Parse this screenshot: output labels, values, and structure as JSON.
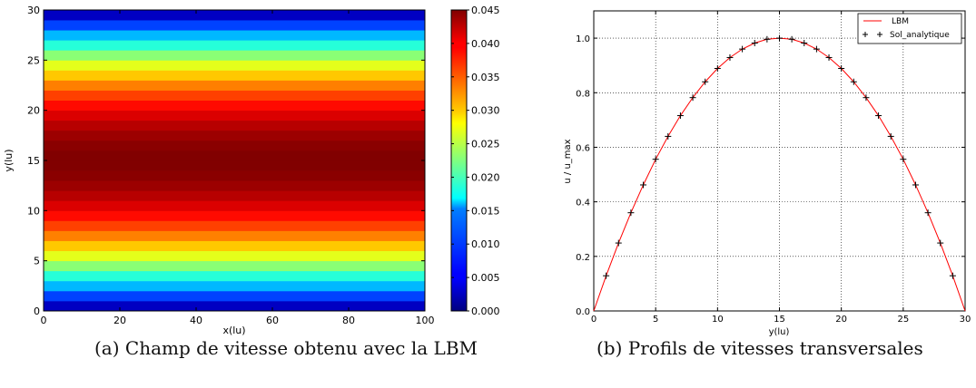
{
  "captions": {
    "a": "(a) Champ de vitesse obtenu avec la LBM",
    "b": "(b) Profils de vitesses transversales"
  },
  "chart_data": [
    {
      "type": "heatmap",
      "xlabel": "x(lu)",
      "ylabel": "y(lu)",
      "xlim": [
        0,
        100
      ],
      "ylim": [
        0,
        30
      ],
      "x_ticks": [
        0,
        20,
        40,
        60,
        80,
        100
      ],
      "y_ticks": [
        0,
        5,
        10,
        15,
        20,
        25,
        30
      ],
      "colorbar": {
        "range": [
          0.0,
          0.045
        ],
        "ticks": [
          "0.000",
          "0.005",
          "0.010",
          "0.015",
          "0.020",
          "0.025",
          "0.030",
          "0.035",
          "0.040",
          "0.045"
        ],
        "colormap": "jet"
      },
      "bands": 30,
      "field": "u(y) = 0.045 * y * (30 - y) / 225, uniform along x",
      "u_max": 0.045
    },
    {
      "type": "line",
      "xlabel": "y(lu)",
      "ylabel": "u / u_max",
      "xlim": [
        0,
        30
      ],
      "ylim": [
        0,
        1.1
      ],
      "x_ticks": [
        0,
        5,
        10,
        15,
        20,
        25,
        30
      ],
      "y_ticks": [
        "0.0",
        "0.2",
        "0.4",
        "0.6",
        "0.8",
        "1.0"
      ],
      "grid": true,
      "legend_position": "top-right",
      "series": [
        {
          "name": "LBM",
          "color": "#ff0000",
          "style": "line",
          "x": [
            0,
            1,
            2,
            3,
            4,
            5,
            6,
            7,
            8,
            9,
            10,
            11,
            12,
            13,
            14,
            15,
            16,
            17,
            18,
            19,
            20,
            21,
            22,
            23,
            24,
            25,
            26,
            27,
            28,
            29,
            30
          ],
          "y": [
            0.0,
            0.129,
            0.249,
            0.36,
            0.462,
            0.556,
            0.64,
            0.716,
            0.782,
            0.84,
            0.889,
            0.929,
            0.96,
            0.982,
            0.996,
            1.0,
            0.996,
            0.982,
            0.96,
            0.929,
            0.889,
            0.84,
            0.782,
            0.716,
            0.64,
            0.556,
            0.462,
            0.36,
            0.249,
            0.129,
            0.0
          ]
        },
        {
          "name": "Sol_analytique",
          "color": "#000000",
          "style": "markers",
          "x": [
            1,
            2,
            3,
            4,
            5,
            6,
            7,
            8,
            9,
            10,
            11,
            12,
            13,
            14,
            15,
            16,
            17,
            18,
            19,
            20,
            21,
            22,
            23,
            24,
            25,
            26,
            27,
            28,
            29
          ],
          "y": [
            0.129,
            0.249,
            0.36,
            0.462,
            0.556,
            0.64,
            0.716,
            0.782,
            0.84,
            0.889,
            0.929,
            0.96,
            0.982,
            0.996,
            1.0,
            0.996,
            0.982,
            0.96,
            0.929,
            0.889,
            0.84,
            0.782,
            0.716,
            0.64,
            0.556,
            0.462,
            0.36,
            0.249,
            0.129
          ]
        }
      ]
    }
  ]
}
